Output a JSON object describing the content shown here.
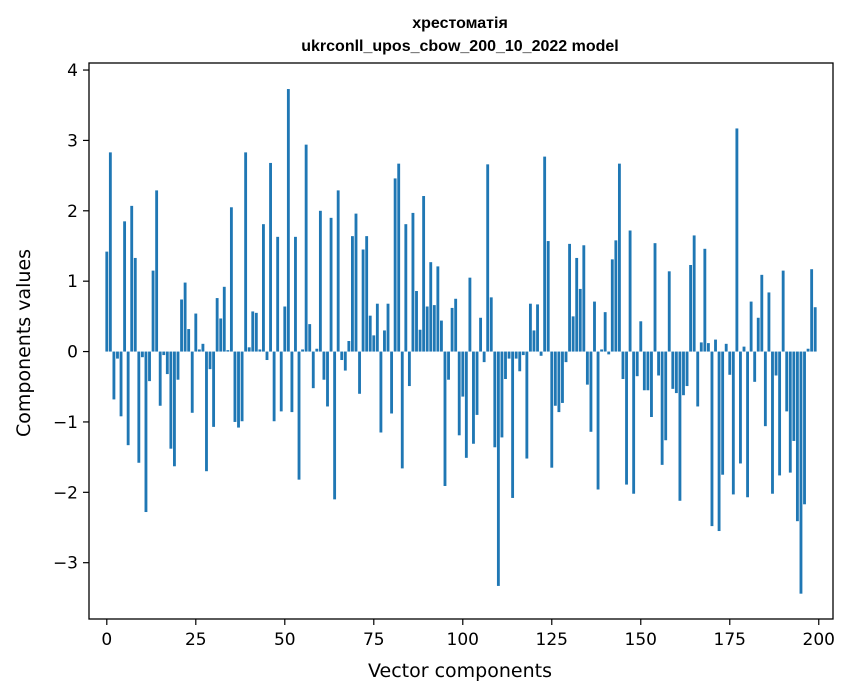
{
  "chart_data": {
    "type": "bar",
    "title": "хрестоматія",
    "subtitle": "ukrconll_upos_cbow_200_10_2022 model",
    "xlabel": "Vector components",
    "ylabel": "Components values",
    "xlim": [
      -5,
      204
    ],
    "ylim": [
      -3.8,
      4.1
    ],
    "xticks": [
      0,
      25,
      50,
      75,
      100,
      125,
      150,
      175,
      200
    ],
    "yticks": [
      -3,
      -2,
      -1,
      0,
      1,
      2,
      3,
      4
    ],
    "ytick_labels": [
      "−3",
      "−2",
      "−1",
      "0",
      "1",
      "2",
      "3",
      "4"
    ],
    "grid": false,
    "bar_color": "#1f77b4",
    "x": [
      0,
      1,
      2,
      3,
      4,
      5,
      6,
      7,
      8,
      9,
      10,
      11,
      12,
      13,
      14,
      15,
      16,
      17,
      18,
      19,
      20,
      21,
      22,
      23,
      24,
      25,
      26,
      27,
      28,
      29,
      30,
      31,
      32,
      33,
      34,
      35,
      36,
      37,
      38,
      39,
      40,
      41,
      42,
      43,
      44,
      45,
      46,
      47,
      48,
      49,
      50,
      51,
      52,
      53,
      54,
      55,
      56,
      57,
      58,
      59,
      60,
      61,
      62,
      63,
      64,
      65,
      66,
      67,
      68,
      69,
      70,
      71,
      72,
      73,
      74,
      75,
      76,
      77,
      78,
      79,
      80,
      81,
      82,
      83,
      84,
      85,
      86,
      87,
      88,
      89,
      90,
      91,
      92,
      93,
      94,
      95,
      96,
      97,
      98,
      99,
      100,
      101,
      102,
      103,
      104,
      105,
      106,
      107,
      108,
      109,
      110,
      111,
      112,
      113,
      114,
      115,
      116,
      117,
      118,
      119,
      120,
      121,
      122,
      123,
      124,
      125,
      126,
      127,
      128,
      129,
      130,
      131,
      132,
      133,
      134,
      135,
      136,
      137,
      138,
      139,
      140,
      141,
      142,
      143,
      144,
      145,
      146,
      147,
      148,
      149,
      150,
      151,
      152,
      153,
      154,
      155,
      156,
      157,
      158,
      159,
      160,
      161,
      162,
      163,
      164,
      165,
      166,
      167,
      168,
      169,
      170,
      171,
      172,
      173,
      174,
      175,
      176,
      177,
      178,
      179,
      180,
      181,
      182,
      183,
      184,
      185,
      186,
      187,
      188,
      189,
      190,
      191,
      192,
      193,
      194,
      195,
      196,
      197,
      198,
      199
    ],
    "values": [
      1.42,
      2.83,
      -0.68,
      -0.1,
      -0.92,
      1.85,
      -1.33,
      2.07,
      1.33,
      -1.58,
      -0.08,
      -2.28,
      -0.42,
      1.15,
      2.29,
      -0.77,
      -0.05,
      -0.32,
      -1.38,
      -1.63,
      -0.4,
      0.74,
      0.98,
      0.32,
      -0.87,
      0.54,
      0.03,
      0.11,
      -1.7,
      -0.25,
      -1.07,
      0.76,
      0.47,
      0.92,
      0.02,
      2.05,
      -1.0,
      -1.08,
      -0.99,
      2.83,
      0.06,
      0.57,
      0.55,
      0.03,
      1.81,
      -0.12,
      2.68,
      -0.99,
      1.63,
      -0.85,
      0.64,
      3.73,
      -0.86,
      1.63,
      -1.82,
      0.03,
      2.94,
      0.39,
      -0.52,
      0.04,
      2.0,
      -0.4,
      -0.78,
      1.9,
      -2.1,
      2.29,
      -0.12,
      -0.27,
      0.15,
      1.64,
      1.96,
      -0.6,
      1.45,
      1.64,
      0.51,
      0.23,
      0.68,
      -1.15,
      0.3,
      0.68,
      -0.88,
      2.46,
      2.67,
      -1.66,
      1.81,
      -0.49,
      1.97,
      0.86,
      0.31,
      2.21,
      0.64,
      1.27,
      0.66,
      1.21,
      0.44,
      -1.91,
      -0.4,
      0.62,
      0.75,
      -1.19,
      -0.64,
      -1.51,
      1.05,
      -1.31,
      -0.9,
      0.48,
      -0.15,
      2.66,
      0.77,
      -1.36,
      -3.33,
      -1.22,
      -0.39,
      -0.1,
      -2.08,
      -0.1,
      -0.28,
      -0.05,
      -1.52,
      0.68,
      0.3,
      0.67,
      -0.06,
      2.77,
      1.57,
      -1.65,
      -0.77,
      -0.86,
      -0.73,
      -0.15,
      1.53,
      0.5,
      1.33,
      0.89,
      1.51,
      -0.47,
      -1.14,
      0.71,
      -1.96,
      0.03,
      0.56,
      -0.04,
      1.31,
      1.58,
      2.67,
      -0.39,
      -1.89,
      1.72,
      -2.02,
      -0.35,
      0.43,
      -0.55,
      -0.55,
      -0.93,
      1.54,
      -0.34,
      -1.61,
      -1.26,
      1.14,
      -0.53,
      -0.59,
      -2.12,
      -0.62,
      -0.49,
      1.23,
      1.65,
      -0.78,
      0.13,
      1.46,
      0.12,
      -2.48,
      0.17,
      -2.55,
      -1.75,
      0.11,
      -0.33,
      -2.03,
      3.17,
      -1.59,
      0.07,
      -2.07,
      0.71,
      -0.43,
      0.48,
      1.09,
      -1.06,
      0.84,
      -2.02,
      -0.34,
      -1.76,
      1.15,
      -0.85,
      -1.72,
      -1.27,
      -2.41,
      -3.44,
      -2.17,
      0.04,
      1.17,
      0.63
    ]
  }
}
